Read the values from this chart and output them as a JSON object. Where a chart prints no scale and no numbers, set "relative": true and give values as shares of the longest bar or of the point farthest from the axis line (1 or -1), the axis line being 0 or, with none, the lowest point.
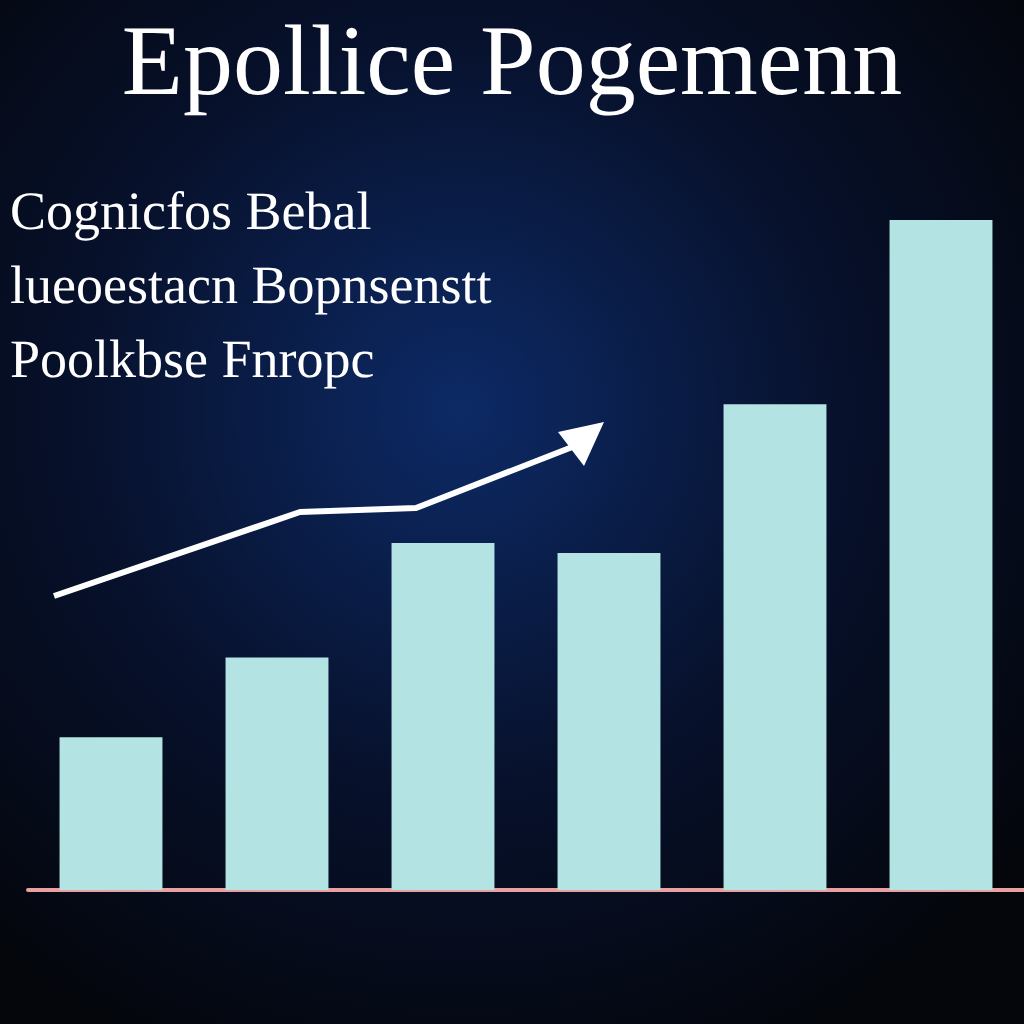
{
  "chart_data": {
    "type": "bar",
    "title": "Epollice Pogemenn",
    "subtitle": "Cognicfos Bebal\nlueoestacn Bopnsenstt\nPoolkbse Fnropc",
    "relative": true,
    "categories": [
      null,
      null,
      null,
      null,
      null,
      null
    ],
    "values": [
      0.228,
      0.347,
      0.518,
      0.503,
      0.725,
      1
    ],
    "color": "#b4e3e3"
  }
}
